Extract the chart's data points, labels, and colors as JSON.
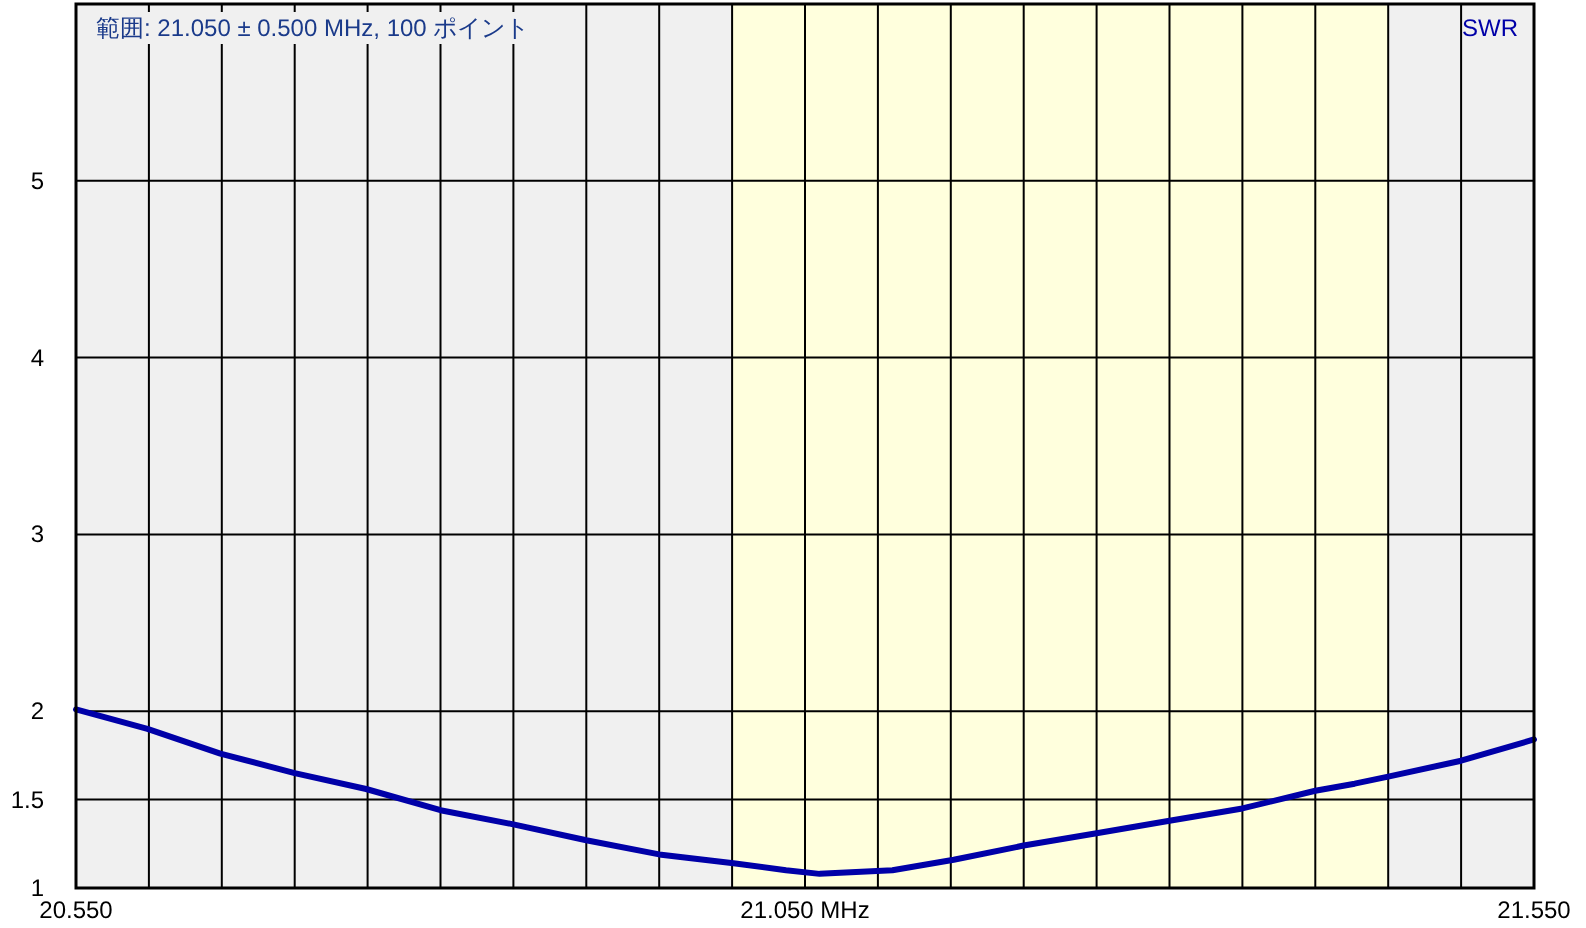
{
  "chart_data": {
    "type": "line",
    "title": "範囲: 21.050 ± 0.500 MHz, 100 ポイント",
    "xlim": [
      20.55,
      21.55
    ],
    "ylim": [
      1,
      6
    ],
    "xticks": [
      {
        "value": 20.55,
        "label": "20.550"
      },
      {
        "value": 20.6,
        "label": null
      },
      {
        "value": 20.65,
        "label": null
      },
      {
        "value": 20.7,
        "label": null
      },
      {
        "value": 20.75,
        "label": null
      },
      {
        "value": 20.8,
        "label": null
      },
      {
        "value": 20.85,
        "label": null
      },
      {
        "value": 20.9,
        "label": null
      },
      {
        "value": 20.95,
        "label": null
      },
      {
        "value": 21.0,
        "label": null
      },
      {
        "value": 21.05,
        "label": "21.050 MHz"
      },
      {
        "value": 21.1,
        "label": null
      },
      {
        "value": 21.15,
        "label": null
      },
      {
        "value": 21.2,
        "label": null
      },
      {
        "value": 21.25,
        "label": null
      },
      {
        "value": 21.3,
        "label": null
      },
      {
        "value": 21.35,
        "label": null
      },
      {
        "value": 21.4,
        "label": null
      },
      {
        "value": 21.45,
        "label": null
      },
      {
        "value": 21.5,
        "label": null
      },
      {
        "value": 21.55,
        "label": "21.550"
      }
    ],
    "yticks": [
      1,
      1.5,
      2,
      3,
      4,
      5
    ],
    "grid": true,
    "bands": [
      {
        "axis": "x",
        "from": 21.0,
        "to": 21.45,
        "color": "#ffffdd"
      }
    ],
    "series": [
      {
        "name": "SWR",
        "color": "#0000a8",
        "x": [
          20.55,
          20.599,
          20.649,
          20.7,
          20.749,
          20.8,
          20.85,
          20.9,
          20.95,
          21.001,
          21.037,
          21.06,
          21.11,
          21.152,
          21.2,
          21.25,
          21.3,
          21.35,
          21.4,
          21.427,
          21.45,
          21.5,
          21.55
        ],
        "values": [
          2.01,
          1.9,
          1.76,
          1.65,
          1.56,
          1.44,
          1.36,
          1.27,
          1.19,
          1.14,
          1.1,
          1.08,
          1.1,
          1.16,
          1.24,
          1.31,
          1.38,
          1.45,
          1.55,
          1.59,
          1.63,
          1.72,
          1.84
        ]
      }
    ]
  }
}
